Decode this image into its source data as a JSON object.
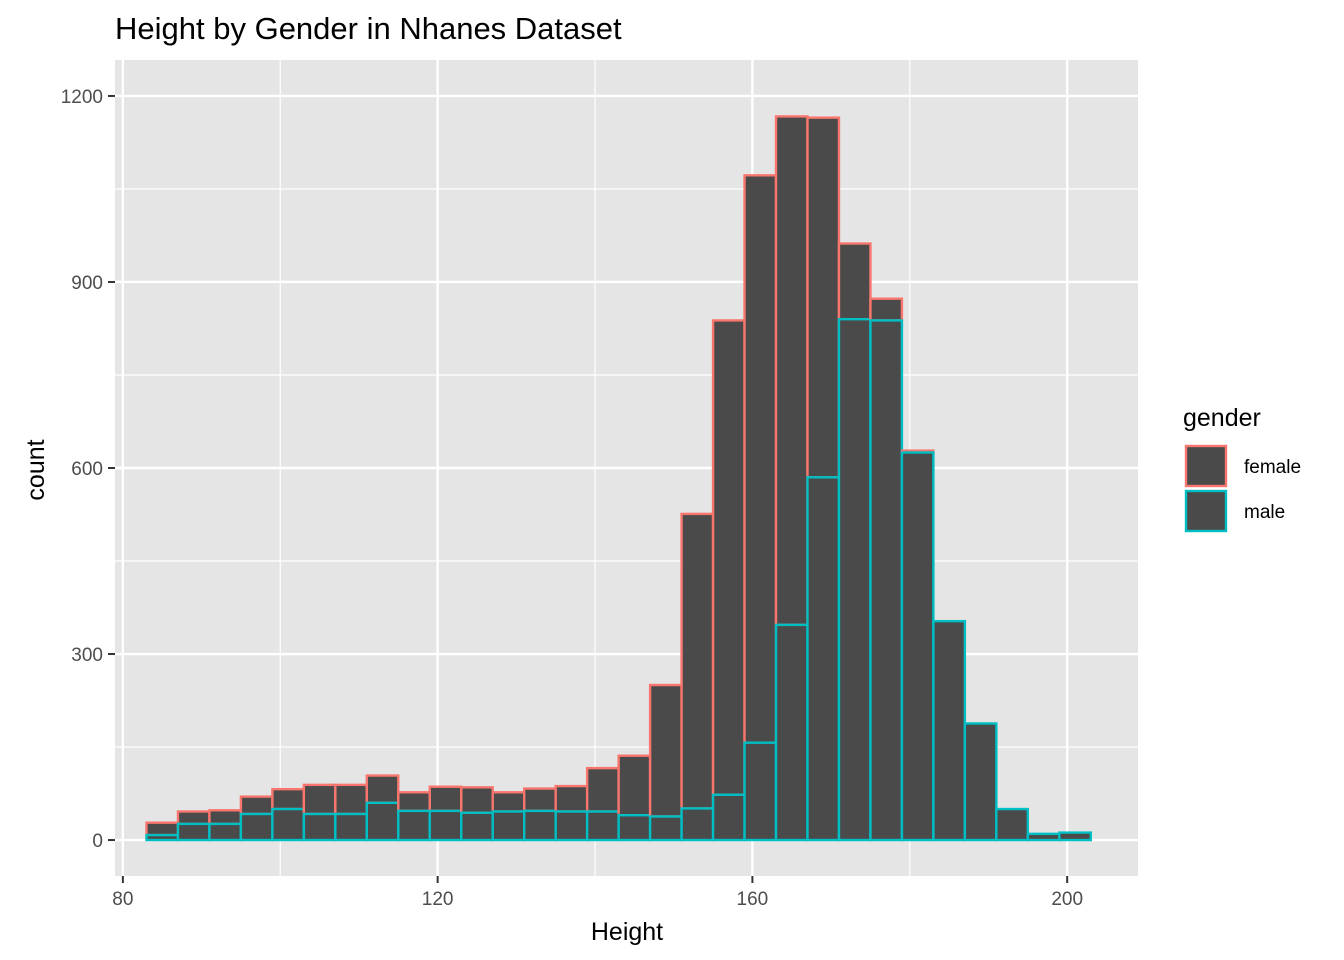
{
  "chart_data": {
    "type": "bar",
    "title": "Height by Gender in Nhanes Dataset",
    "xlabel": "Height",
    "ylabel": "count",
    "xlim": [
      79,
      209
    ],
    "ylim": [
      -58,
      1258
    ],
    "x_ticks": [
      80,
      120,
      160,
      200
    ],
    "y_ticks": [
      0,
      300,
      600,
      900,
      1200
    ],
    "x_tick_labels": [
      "80",
      "120",
      "160",
      "200"
    ],
    "y_tick_labels": [
      "0",
      "300",
      "600",
      "900",
      "1200"
    ],
    "stacked": true,
    "bin_width": 4,
    "x_start": 83,
    "fill_color": "#4a4a4a",
    "panel_background": "#e5e5e5",
    "grid_color": "#ffffff",
    "grid": true,
    "legend": {
      "title": "gender",
      "position": "right",
      "items": [
        "female",
        "male"
      ]
    },
    "series": [
      {
        "name": "female",
        "color": "#F8766D",
        "values": [
          20,
          20,
          22,
          28,
          32,
          47,
          47,
          44,
          30,
          39,
          41,
          31,
          36,
          41,
          70,
          96,
          212,
          475,
          765,
          915,
          820,
          580,
          122,
          35,
          3,
          0,
          0,
          0,
          0,
          0
        ]
      },
      {
        "name": "male",
        "color": "#00BFC4",
        "values": [
          8,
          26,
          26,
          42,
          50,
          42,
          42,
          60,
          47,
          47,
          44,
          46,
          47,
          46,
          46,
          40,
          38,
          51,
          73,
          157,
          347,
          585,
          840,
          838,
          625,
          353,
          188,
          50,
          10,
          12
        ]
      }
    ]
  }
}
